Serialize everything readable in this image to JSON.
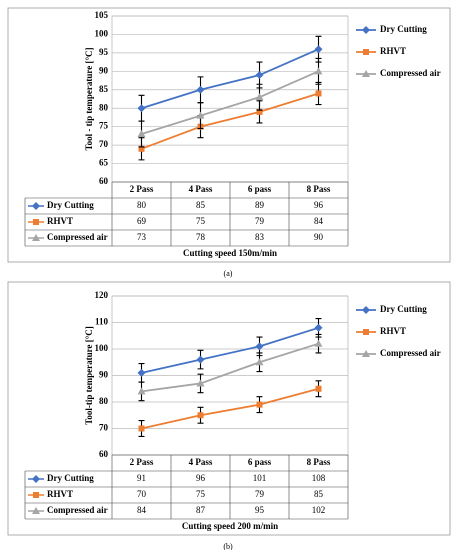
{
  "chart_data": [
    {
      "type": "line",
      "caption": "(a)",
      "ylabel": "Tool - tip temperature [°C]",
      "xlabel": "Cutting speed 150m/min",
      "categories": [
        "2 Pass",
        "4 Pass",
        "6 pass",
        "8 Pass"
      ],
      "series": [
        {
          "name": "Dry Cutting",
          "color": "#4472c4",
          "marker": "diamond",
          "values": [
            80,
            85,
            89,
            96
          ],
          "errors": [
            3.5,
            3.5,
            3.5,
            3.5
          ]
        },
        {
          "name": "RHVT",
          "color": "#ed7d31",
          "marker": "square",
          "values": [
            69,
            75,
            79,
            84
          ],
          "errors": [
            3,
            3,
            3,
            3
          ]
        },
        {
          "name": "Compressed air",
          "color": "#a5a5a5",
          "marker": "triangle",
          "values": [
            73,
            78,
            83,
            90
          ],
          "errors": [
            3.5,
            3.5,
            3.5,
            3.5
          ]
        }
      ],
      "ylim": [
        60,
        105
      ],
      "yticks": [
        60,
        65,
        70,
        75,
        80,
        85,
        90,
        95,
        100,
        105
      ],
      "grid": true,
      "legend": "right"
    },
    {
      "type": "line",
      "caption": "(b)",
      "ylabel": "Tool-tip temperature [°C]",
      "xlabel": "Cutting speed 200 m/min",
      "categories": [
        "2 Pass",
        "4 Pass",
        "6 pass",
        "8 Pass"
      ],
      "series": [
        {
          "name": "Dry Cutting",
          "color": "#4472c4",
          "marker": "diamond",
          "values": [
            91,
            96,
            101,
            108
          ],
          "errors": [
            3.5,
            3.5,
            3.5,
            3.5
          ]
        },
        {
          "name": "RHVT",
          "color": "#ed7d31",
          "marker": "square",
          "values": [
            70,
            75,
            79,
            85
          ],
          "errors": [
            3,
            3,
            3,
            3
          ]
        },
        {
          "name": "Compressed air",
          "color": "#a5a5a5",
          "marker": "triangle",
          "values": [
            84,
            87,
            95,
            102
          ],
          "errors": [
            3.5,
            3.5,
            3.5,
            3.5
          ]
        }
      ],
      "ylim": [
        60,
        120
      ],
      "yticks": [
        60,
        70,
        80,
        90,
        100,
        110,
        120
      ],
      "grid": true,
      "legend": "right"
    }
  ]
}
